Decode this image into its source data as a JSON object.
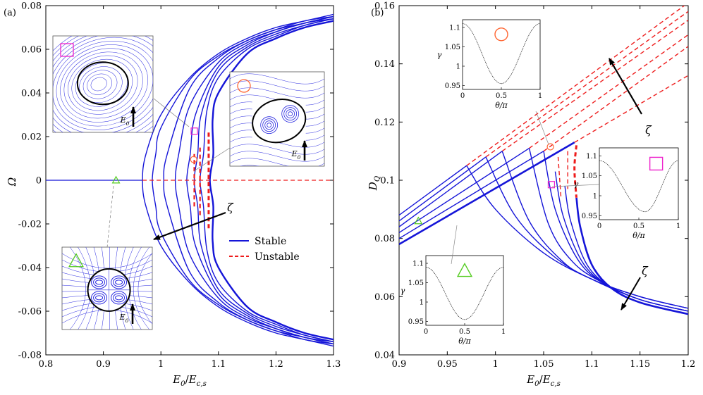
{
  "chart_data": [
    {
      "panel_label": "(a)",
      "type": "line",
      "xlabel": "E_0/E_c,s",
      "ylabel": "Ω",
      "xlim": [
        0.8,
        1.3
      ],
      "ylim": [
        -0.08,
        0.08
      ],
      "xticks": [
        "0.8",
        "0.9",
        "1",
        "1.1",
        "1.2",
        "1.3"
      ],
      "yticks": [
        "-0.08",
        "-0.06",
        "-0.04",
        "-0.02",
        "0",
        "0.02",
        "0.04",
        "0.06",
        "0.08"
      ],
      "legend": [
        "Stable",
        "Unstable"
      ],
      "legend_position": "lower-right",
      "arrow_label": "ζ",
      "inset_field_label": "E_0",
      "series": [
        {
          "name": "stable-branch-1",
          "style": "Stable",
          "vertex": 0.968,
          "x": [
            0.968,
            1.0,
            1.05,
            1.1,
            1.15,
            1.2,
            1.25,
            1.3
          ],
          "upper": [
            0.0,
            0.03,
            0.047,
            0.058,
            0.065,
            0.07,
            0.073,
            0.076
          ]
        },
        {
          "name": "stable-branch-2",
          "style": "Stable",
          "vertex": 0.985,
          "x": [
            0.985,
            1.0,
            1.05,
            1.1,
            1.15,
            1.2,
            1.25,
            1.3
          ],
          "upper": [
            0.0,
            0.024,
            0.046,
            0.057,
            0.064,
            0.069,
            0.073,
            0.075
          ]
        },
        {
          "name": "stable-branch-3",
          "style": "Stable",
          "vertex": 1.005,
          "x": [
            1.005,
            1.05,
            1.1,
            1.15,
            1.2,
            1.25,
            1.3
          ],
          "upper": [
            0.0,
            0.042,
            0.056,
            0.064,
            0.069,
            0.072,
            0.075
          ]
        },
        {
          "name": "stable-branch-4",
          "style": "Stable",
          "vertex": 1.025,
          "x": [
            1.025,
            1.05,
            1.1,
            1.15,
            1.2,
            1.25,
            1.3
          ],
          "upper": [
            0.0,
            0.034,
            0.054,
            0.063,
            0.068,
            0.072,
            0.075
          ]
        },
        {
          "name": "stable-branch-5",
          "style": "Stable",
          "vertex": 1.045,
          "x": [
            1.045,
            1.06,
            1.1,
            1.15,
            1.2,
            1.25,
            1.3
          ],
          "upper": [
            0.0,
            0.03,
            0.052,
            0.062,
            0.068,
            0.072,
            0.074
          ]
        },
        {
          "name": "stable-branch-6",
          "style": "Stable",
          "vertex": 1.058,
          "x": [
            1.058,
            1.07,
            1.1,
            1.15,
            1.2,
            1.25,
            1.3
          ],
          "upper": [
            0.0,
            0.03,
            0.05,
            0.061,
            0.067,
            0.071,
            0.074
          ]
        },
        {
          "name": "stable-branch-7",
          "style": "Stable",
          "vertex": 1.068,
          "x": [
            1.068,
            1.08,
            1.1,
            1.15,
            1.2,
            1.25,
            1.3
          ],
          "upper": [
            0.0,
            0.032,
            0.047,
            0.06,
            0.066,
            0.071,
            0.074
          ]
        },
        {
          "name": "stable-branch-8",
          "style": "Stable",
          "vertex": 1.085,
          "x": [
            1.085,
            1.09,
            1.1,
            1.15,
            1.2,
            1.25,
            1.3
          ],
          "upper": [
            0.0,
            0.028,
            0.04,
            0.058,
            0.065,
            0.07,
            0.073
          ]
        },
        {
          "name": "stable-zero-branch",
          "style": "Stable",
          "x": [
            0.8,
            0.968
          ],
          "y": [
            0.0,
            0.0
          ]
        },
        {
          "name": "unstable-zero-branch",
          "style": "Unstable",
          "x": [
            0.968,
            1.3
          ],
          "y": [
            0.0,
            0.0
          ]
        },
        {
          "name": "unstable-segment-1",
          "style": "Unstable",
          "x": [
            1.058,
            1.058
          ],
          "y": [
            -0.012,
            0.012
          ]
        },
        {
          "name": "unstable-segment-2",
          "style": "Unstable",
          "x": [
            1.068,
            1.068
          ],
          "y": [
            -0.016,
            0.016
          ]
        },
        {
          "name": "unstable-segment-3",
          "style": "Unstable",
          "x": [
            1.083,
            1.083
          ],
          "y": [
            -0.022,
            0.022
          ]
        }
      ],
      "markers": [
        {
          "shape": "triangle",
          "color": "#55cc22",
          "x": 0.922,
          "y": 0.0
        },
        {
          "shape": "circle",
          "color": "#ff6633",
          "x": 1.057,
          "y": 0.0095
        },
        {
          "shape": "square",
          "color": "#ee22cc",
          "x": 1.058,
          "y": 0.0225
        }
      ]
    },
    {
      "panel_label": "(b)",
      "type": "line",
      "xlabel": "E_0/E_c,s",
      "ylabel": "D_Q",
      "xlim": [
        0.9,
        1.2
      ],
      "ylim": [
        0.04,
        0.16
      ],
      "xticks": [
        "0.9",
        "0.95",
        "1",
        "1.05",
        "1.1",
        "1.15",
        "1.2"
      ],
      "yticks": [
        "0.04",
        "0.06",
        "0.08",
        "0.1",
        "0.12",
        "0.14",
        "0.16"
      ],
      "arrow_label": "ζ",
      "series": [
        {
          "name": "lower-stable-1",
          "style": "Stable",
          "x": [
            0.9,
            0.97
          ],
          "y": [
            0.088,
            0.105
          ]
        },
        {
          "name": "lower-stable-2",
          "style": "Stable",
          "x": [
            0.9,
            0.99
          ],
          "y": [
            0.086,
            0.108
          ]
        },
        {
          "name": "lower-stable-3",
          "style": "Stable",
          "x": [
            0.9,
            1.007
          ],
          "y": [
            0.084,
            0.11
          ]
        },
        {
          "name": "lower-stable-4",
          "style": "Stable",
          "x": [
            0.9,
            1.035
          ],
          "y": [
            0.082,
            0.111
          ]
        },
        {
          "name": "lower-stable-5",
          "style": "Stable",
          "x": [
            0.9,
            1.05
          ],
          "y": [
            0.08,
            0.11
          ]
        },
        {
          "name": "lower-stable-6",
          "style": "Stable",
          "x": [
            0.9,
            1.082
          ],
          "y": [
            0.078,
            0.113
          ]
        },
        {
          "name": "upper-unstable-1",
          "style": "Unstable",
          "x": [
            0.97,
            1.2
          ],
          "y": [
            0.105,
            0.161
          ]
        },
        {
          "name": "upper-unstable-2",
          "style": "Unstable",
          "x": [
            0.99,
            1.2
          ],
          "y": [
            0.108,
            0.158
          ]
        },
        {
          "name": "upper-unstable-3",
          "style": "Unstable",
          "x": [
            1.007,
            1.2
          ],
          "y": [
            0.11,
            0.155
          ]
        },
        {
          "name": "upper-unstable-4",
          "style": "Unstable",
          "x": [
            1.035,
            1.2
          ],
          "y": [
            0.111,
            0.15
          ]
        },
        {
          "name": "upper-unstable-5",
          "style": "Unstable",
          "x": [
            1.05,
            1.2
          ],
          "y": [
            0.11,
            0.146
          ]
        },
        {
          "name": "upper-unstable-6",
          "style": "Unstable",
          "x": [
            1.082,
            1.2
          ],
          "y": [
            0.113,
            0.136
          ]
        },
        {
          "name": "decay-stable-1",
          "style": "Stable",
          "x": [
            0.97,
            1.0,
            1.05,
            1.1,
            1.15,
            1.2
          ],
          "y": [
            0.105,
            0.09,
            0.075,
            0.066,
            0.06,
            0.056
          ]
        },
        {
          "name": "decay-stable-2",
          "style": "Stable",
          "x": [
            0.99,
            1.02,
            1.06,
            1.1,
            1.15,
            1.2
          ],
          "y": [
            0.108,
            0.088,
            0.074,
            0.066,
            0.06,
            0.056
          ]
        },
        {
          "name": "decay-stable-3",
          "style": "Stable",
          "x": [
            1.007,
            1.035,
            1.07,
            1.1,
            1.15,
            1.2
          ],
          "y": [
            0.11,
            0.086,
            0.072,
            0.066,
            0.059,
            0.055
          ]
        },
        {
          "name": "decay-stable-4",
          "style": "Stable",
          "x": [
            1.035,
            1.055,
            1.08,
            1.11,
            1.15,
            1.2
          ],
          "y": [
            0.111,
            0.085,
            0.072,
            0.065,
            0.059,
            0.055
          ]
        },
        {
          "name": "decay-stable-5",
          "style": "Stable",
          "x": [
            1.05,
            1.062,
            1.085,
            1.11,
            1.15,
            1.2
          ],
          "y": [
            0.11,
            0.09,
            0.073,
            0.065,
            0.059,
            0.055
          ]
        },
        {
          "name": "decay-stable-6",
          "style": "Stable",
          "x": [
            1.062,
            1.07,
            1.09,
            1.115,
            1.15,
            1.2
          ],
          "y": [
            0.103,
            0.088,
            0.072,
            0.064,
            0.058,
            0.054
          ]
        },
        {
          "name": "decay-stable-7",
          "style": "Stable",
          "x": [
            1.072,
            1.078,
            1.095,
            1.12,
            1.15,
            1.2
          ],
          "y": [
            0.098,
            0.086,
            0.071,
            0.063,
            0.058,
            0.054
          ]
        },
        {
          "name": "decay-stable-8",
          "style": "Stable",
          "x": [
            1.084,
            1.088,
            1.1,
            1.12,
            1.15,
            1.2
          ],
          "y": [
            0.094,
            0.084,
            0.071,
            0.063,
            0.058,
            0.054
          ]
        },
        {
          "name": "unstable-drop-1",
          "style": "Unstable",
          "x": [
            1.065,
            1.068
          ],
          "y": [
            0.108,
            0.094
          ]
        },
        {
          "name": "unstable-drop-2",
          "style": "Unstable",
          "x": [
            1.075,
            1.075
          ],
          "y": [
            0.11,
            0.097
          ]
        },
        {
          "name": "unstable-drop-3",
          "style": "Unstable",
          "x": [
            1.084,
            1.082,
            1.084
          ],
          "y": [
            0.112,
            0.104,
            0.094
          ]
        }
      ],
      "markers": [
        {
          "shape": "triangle",
          "color": "#55cc22",
          "x": 0.92,
          "y": 0.086
        },
        {
          "shape": "circle",
          "color": "#ff6633",
          "x": 1.057,
          "y": 0.1115
        },
        {
          "shape": "square",
          "color": "#ee22cc",
          "x": 1.058,
          "y": 0.0985
        }
      ],
      "insets": [
        {
          "name": "inset-circle",
          "marker": "circle",
          "xlabel": "θ/π",
          "ylabel": "γ",
          "xticks": [
            "0",
            "0.5",
            "1"
          ],
          "yticks": [
            "0.95",
            "1",
            "1.05",
            "1.1"
          ],
          "ylim": [
            0.94,
            1.12
          ],
          "min_at": 0.5,
          "min": 0.955,
          "max": 1.11
        },
        {
          "name": "inset-square",
          "marker": "square",
          "xlabel": "θ/π",
          "ylabel": "γ",
          "xticks": [
            "0",
            "0.5",
            "1"
          ],
          "yticks": [
            "0.95",
            "1",
            "1.05",
            "1.1"
          ],
          "ylim": [
            0.94,
            1.12
          ],
          "min_at": 0.58,
          "min": 0.96,
          "max": 1.088
        },
        {
          "name": "inset-triangle",
          "marker": "triangle",
          "xlabel": "θ/π",
          "ylabel": "γ",
          "xticks": [
            "0",
            "0.5",
            "1"
          ],
          "yticks": [
            "0.95",
            "1",
            "1.05",
            "1.1"
          ],
          "ylim": [
            0.94,
            1.12
          ],
          "min_at": 0.5,
          "min": 0.955,
          "max": 1.09
        }
      ]
    }
  ],
  "colors": {
    "stable": "#1515d8",
    "unstable": "#ee1c1c",
    "stream": "#2a2ae0",
    "triangle": "#55cc22",
    "circle": "#ff6633",
    "square": "#ee22cc"
  }
}
